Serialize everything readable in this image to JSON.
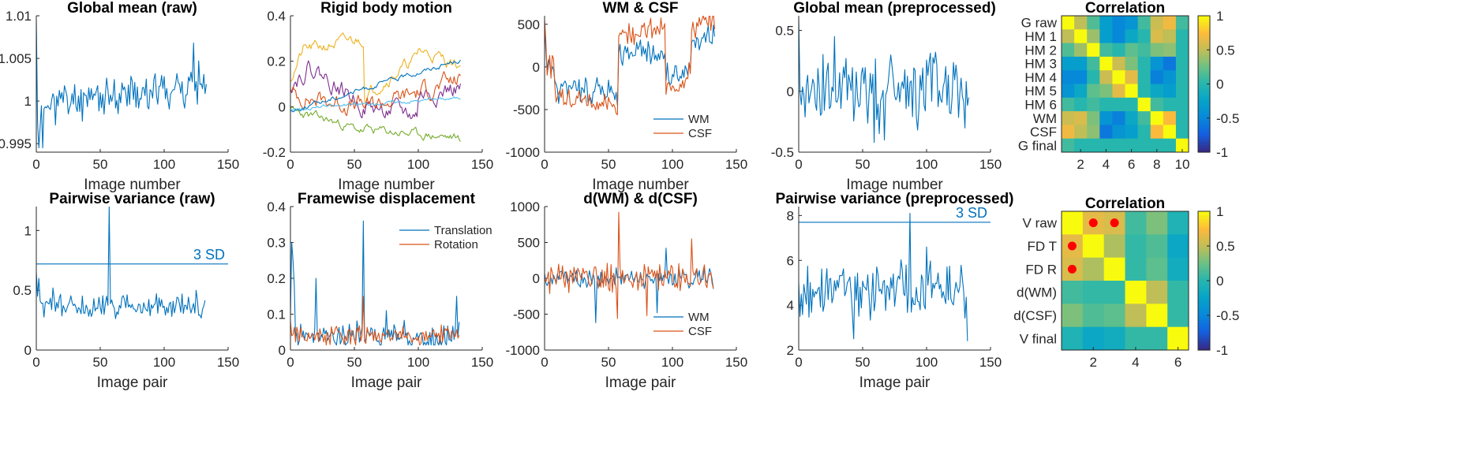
{
  "colors": {
    "c1": "#0072BD",
    "c2": "#D95319",
    "c3": "#EDB120",
    "c4": "#7E2F8E",
    "c5": "#77AC30",
    "c6": "#4DBEEE",
    "marker": "#FF0000"
  },
  "colorbar_ticks": [
    "1",
    "0.5",
    "0",
    "-0.5",
    "-1"
  ],
  "chart_data": [
    {
      "id": "p1",
      "type": "line",
      "title": "Global mean (raw)",
      "xlabel": "Image number",
      "xlim": [
        0,
        150
      ],
      "ylim": [
        0.994,
        1.01
      ],
      "xticks": [
        0,
        50,
        100,
        150
      ],
      "xtick_labels": [
        "0",
        "50",
        "100",
        "150"
      ],
      "yticks": [
        0.995,
        1,
        1.005,
        1.01
      ],
      "ytick_labels": [
        "0.995",
        "1",
        "1.005",
        "1.01"
      ],
      "series": [
        {
          "color": "c1",
          "gen": {
            "n": 134,
            "seed": 11,
            "base": 0.9995,
            "trend": 0.0025,
            "noise": 0.0018,
            "start": [
              1.0095,
              0.9975,
              0.9945,
              0.997
            ],
            "spikes": [
              [
                123,
                1.0068
              ],
              [
                5,
                0.9945
              ]
            ]
          }
        }
      ]
    },
    {
      "id": "p2",
      "type": "line",
      "title": "Rigid body motion",
      "xlabel": "Image number",
      "xlim": [
        0,
        150
      ],
      "ylim": [
        -0.2,
        0.4
      ],
      "xticks": [
        0,
        50,
        100,
        150
      ],
      "xtick_labels": [
        "0",
        "50",
        "100",
        "150"
      ],
      "yticks": [
        -0.2,
        0,
        0.2,
        0.4
      ],
      "ytick_labels": [
        "-0.2",
        "0",
        "0.2",
        "0.4"
      ],
      "series": [
        {
          "color": "c3",
          "gen": {
            "n": 134,
            "seed": 21,
            "walk": true,
            "segments": [
              [
                0,
                10,
                0.12,
                0.25
              ],
              [
                10,
                58,
                0.25,
                0.3
              ],
              [
                58,
                100,
                0.05,
                0.22
              ],
              [
                100,
                134,
                0.25,
                0.18
              ]
            ],
            "noise": 0.02
          }
        },
        {
          "color": "c4",
          "gen": {
            "n": 134,
            "seed": 22,
            "walk": true,
            "segments": [
              [
                0,
                15,
                0.1,
                0.18
              ],
              [
                15,
                58,
                0.18,
                0.0
              ],
              [
                58,
                100,
                0.0,
                -0.04
              ],
              [
                100,
                134,
                0.05,
                0.08
              ]
            ],
            "noise": 0.03
          }
        },
        {
          "color": "c5",
          "gen": {
            "n": 134,
            "seed": 23,
            "walk": true,
            "segments": [
              [
                0,
                30,
                -0.02,
                -0.06
              ],
              [
                30,
                58,
                -0.06,
                -0.11
              ],
              [
                58,
                134,
                -0.1,
                -0.14
              ]
            ],
            "noise": 0.015
          }
        },
        {
          "color": "c2",
          "gen": {
            "n": 134,
            "seed": 24,
            "walk": true,
            "segments": [
              [
                0,
                60,
                0.05,
                0.0
              ],
              [
                60,
                134,
                0.0,
                0.12
              ]
            ],
            "noise": 0.03
          }
        },
        {
          "color": "c1",
          "gen": {
            "n": 134,
            "seed": 25,
            "walk": true,
            "segments": [
              [
                0,
                134,
                -0.02,
                0.21
              ]
            ],
            "noise": 0.008
          }
        },
        {
          "color": "c6",
          "gen": {
            "n": 134,
            "seed": 26,
            "walk": true,
            "segments": [
              [
                0,
                134,
                -0.01,
                0.04
              ]
            ],
            "noise": 0.006
          }
        }
      ]
    },
    {
      "id": "p3",
      "type": "line",
      "title": "WM & CSF",
      "xlabel": "Image number",
      "xlim": [
        0,
        150
      ],
      "ylim": [
        -1000,
        600
      ],
      "xticks": [
        0,
        50,
        100,
        150
      ],
      "xtick_labels": [
        "0",
        "50",
        "100",
        "150"
      ],
      "yticks": [
        -1000,
        -500,
        0,
        500
      ],
      "ytick_labels": [
        "-1000",
        "-500",
        "0",
        "500"
      ],
      "legend": {
        "position": "bottom-right",
        "entries": [
          {
            "name": "WM",
            "color": "c1"
          },
          {
            "name": "CSF",
            "color": "c2"
          }
        ]
      },
      "series": [
        {
          "name": "WM",
          "color": "c1",
          "gen": {
            "n": 134,
            "seed": 31,
            "segments": [
              [
                0,
                8,
                0,
                0
              ],
              [
                8,
                58,
                -250,
                -300
              ],
              [
                58,
                95,
                180,
                150
              ],
              [
                95,
                115,
                -100,
                0
              ],
              [
                115,
                134,
                200,
                450
              ]
            ],
            "noise": 120,
            "start": [
              500,
              200
            ]
          }
        },
        {
          "name": "CSF",
          "color": "c2",
          "gen": {
            "n": 134,
            "seed": 32,
            "segments": [
              [
                0,
                8,
                0,
                0
              ],
              [
                8,
                58,
                -300,
                -480
              ],
              [
                58,
                95,
                400,
                450
              ],
              [
                95,
                115,
                -300,
                -50
              ],
              [
                115,
                134,
                450,
                560
              ]
            ],
            "noise": 100,
            "start": [
              550,
              300
            ]
          }
        }
      ]
    },
    {
      "id": "p4",
      "type": "line",
      "title": "Global mean (preprocessed)",
      "xlabel": "Image number",
      "xlim": [
        0,
        150
      ],
      "ylim": [
        -0.5,
        0.62
      ],
      "xticks": [
        0,
        50,
        100,
        150
      ],
      "xtick_labels": [
        "0",
        "50",
        "100",
        "150"
      ],
      "yticks": [
        -0.5,
        0,
        0.5
      ],
      "ytick_labels": [
        "-0.5",
        "0",
        "0.5"
      ],
      "series": [
        {
          "color": "c1",
          "gen": {
            "n": 134,
            "seed": 41,
            "base": 0.0,
            "noise": 0.25,
            "start": [
              0.6,
              0.0
            ],
            "spikes": [
              [
                67,
                -0.4
              ],
              [
                28,
                0.45
              ],
              [
                59,
                -0.42
              ]
            ]
          }
        }
      ]
    },
    {
      "id": "p5",
      "type": "heatmap",
      "title": "Correlation",
      "row_labels": [
        "G raw",
        "HM 1",
        "HM 2",
        "HM 3",
        "HM 4",
        "HM 5",
        "HM 6",
        "WM",
        "CSF",
        "G final"
      ],
      "xticks": [
        2,
        4,
        6,
        8,
        10
      ],
      "xtick_labels": [
        "2",
        "4",
        "6",
        "8",
        "10"
      ],
      "clim": [
        -1,
        1
      ],
      "matrix": [
        [
          1.0,
          0.5,
          0.15,
          -0.3,
          -0.5,
          -0.4,
          0.1,
          0.55,
          0.7,
          0.1
        ],
        [
          0.5,
          1.0,
          0.4,
          -0.3,
          -0.5,
          -0.2,
          0.0,
          0.6,
          0.5,
          0.0
        ],
        [
          0.15,
          0.4,
          1.0,
          0.1,
          0.0,
          0.2,
          0.1,
          0.3,
          0.35,
          0.0
        ],
        [
          -0.3,
          -0.3,
          0.1,
          1.0,
          0.55,
          0.3,
          0.0,
          -0.4,
          -0.6,
          0.0
        ],
        [
          -0.5,
          -0.5,
          0.0,
          0.55,
          1.0,
          0.65,
          0.0,
          -0.55,
          -0.4,
          0.0
        ],
        [
          -0.4,
          -0.2,
          0.2,
          0.3,
          0.65,
          1.0,
          0.0,
          -0.2,
          -0.3,
          0.0
        ],
        [
          0.1,
          0.0,
          0.1,
          0.0,
          0.0,
          0.0,
          1.0,
          0.1,
          0.0,
          0.0
        ],
        [
          0.55,
          0.6,
          0.3,
          -0.4,
          -0.55,
          -0.2,
          0.1,
          1.0,
          0.75,
          0.0
        ],
        [
          0.7,
          0.5,
          0.35,
          -0.6,
          -0.4,
          -0.3,
          0.0,
          0.75,
          1.0,
          0.0
        ],
        [
          0.1,
          0.0,
          0.0,
          0.0,
          0.0,
          0.0,
          0.0,
          0.0,
          0.0,
          1.0
        ]
      ]
    },
    {
      "id": "p6",
      "type": "line",
      "title": "Pairwise variance (raw)",
      "xlabel": "Image pair",
      "xlim": [
        0,
        150
      ],
      "ylim": [
        0,
        1.2
      ],
      "xticks": [
        0,
        50,
        100,
        150
      ],
      "xtick_labels": [
        "0",
        "50",
        "100",
        "150"
      ],
      "yticks": [
        0,
        0.5,
        1
      ],
      "ytick_labels": [
        "0",
        "0.5",
        "1"
      ],
      "hline": {
        "y": 0.72,
        "label": "3 SD"
      },
      "series": [
        {
          "color": "c1",
          "gen": {
            "n": 133,
            "seed": 61,
            "base": 0.36,
            "noise": 0.08,
            "positive": true,
            "start": [
              0.65,
              0.45,
              0.6
            ],
            "spikes": [
              [
                57,
                1.2
              ],
              [
                13,
                0.52
              ],
              [
                125,
                0.5
              ]
            ]
          }
        }
      ]
    },
    {
      "id": "p7",
      "type": "line",
      "title": "Framewise displacement",
      "xlabel": "Image pair",
      "xlim": [
        0,
        150
      ],
      "ylim": [
        0,
        0.4
      ],
      "xticks": [
        0,
        50,
        100,
        150
      ],
      "xtick_labels": [
        "0",
        "50",
        "100",
        "150"
      ],
      "yticks": [
        0,
        0.1,
        0.2,
        0.3,
        0.4
      ],
      "ytick_labels": [
        "0",
        "0.1",
        "0.2",
        "0.3",
        "0.4"
      ],
      "legend": {
        "position": "top-right",
        "entries": [
          {
            "name": "Translation",
            "color": "c1"
          },
          {
            "name": "Rotation",
            "color": "c2"
          }
        ]
      },
      "series": [
        {
          "name": "Translation",
          "color": "c1",
          "gen": {
            "n": 133,
            "seed": 71,
            "base": 0.04,
            "noise": 0.03,
            "positive": true,
            "start": [
              0.1,
              0.3,
              0.25,
              0.18
            ],
            "spikes": [
              [
                57,
                0.36
              ],
              [
                20,
                0.2
              ],
              [
                130,
                0.15
              ],
              [
                75,
                0.11
              ]
            ]
          }
        },
        {
          "name": "Rotation",
          "color": "c2",
          "gen": {
            "n": 133,
            "seed": 72,
            "base": 0.04,
            "noise": 0.02,
            "positive": true,
            "start": [
              0.08,
              0.04
            ],
            "spikes": [
              [
                57,
                0.15
              ],
              [
                118,
                0.07
              ]
            ]
          }
        }
      ]
    },
    {
      "id": "p8",
      "type": "line",
      "title": "d(WM) & d(CSF)",
      "xlabel": "Image pair",
      "xlim": [
        0,
        150
      ],
      "ylim": [
        -1000,
        1000
      ],
      "xticks": [
        0,
        50,
        100,
        150
      ],
      "xtick_labels": [
        "0",
        "50",
        "100",
        "150"
      ],
      "yticks": [
        -1000,
        -500,
        0,
        500,
        1000
      ],
      "ytick_labels": [
        "-1000",
        "-500",
        "0",
        "500",
        "1000"
      ],
      "legend": {
        "position": "bottom-right",
        "entries": [
          {
            "name": "WM",
            "color": "c1"
          },
          {
            "name": "CSF",
            "color": "c2"
          }
        ]
      },
      "series": [
        {
          "name": "WM",
          "color": "c1",
          "gen": {
            "n": 133,
            "seed": 81,
            "base": 0,
            "noise": 110,
            "spikes": [
              [
                40,
                -620
              ],
              [
                95,
                420
              ],
              [
                88,
                -480
              ]
            ]
          }
        },
        {
          "name": "CSF",
          "color": "c2",
          "gen": {
            "n": 133,
            "seed": 82,
            "base": 0,
            "noise": 150,
            "spikes": [
              [
                58,
                920
              ],
              [
                57,
                -560
              ],
              [
                115,
                550
              ],
              [
                80,
                -520
              ]
            ]
          }
        }
      ]
    },
    {
      "id": "p9",
      "type": "line",
      "title": "Pairwise variance (preprocessed)",
      "xlabel": "Image pair",
      "xlim": [
        0,
        150
      ],
      "ylim": [
        2,
        8.4
      ],
      "xticks": [
        0,
        50,
        100,
        150
      ],
      "xtick_labels": [
        "0",
        "50",
        "100",
        "150"
      ],
      "yticks": [
        2,
        4,
        6,
        8
      ],
      "ytick_labels": [
        "2",
        "4",
        "6",
        "8"
      ],
      "hline": {
        "y": 7.7,
        "label": "3 SD"
      },
      "series": [
        {
          "color": "c1",
          "gen": {
            "n": 133,
            "seed": 91,
            "base": 4.6,
            "noise": 1.0,
            "start": [
              5.0,
              3.5,
              4.5
            ],
            "spikes": [
              [
                87,
                8.1
              ],
              [
                43,
                2.5
              ],
              [
                132,
                2.4
              ],
              [
                100,
                6.6
              ]
            ]
          }
        }
      ]
    },
    {
      "id": "p10",
      "type": "heatmap",
      "title": "Correlation",
      "row_labels": [
        "V raw",
        "FD T",
        "FD R",
        "d(WM)",
        "d(CSF)",
        "V final"
      ],
      "xticks": [
        2,
        4,
        6
      ],
      "xtick_labels": [
        "2",
        "4",
        "6"
      ],
      "clim": [
        -1,
        1
      ],
      "matrix": [
        [
          1.0,
          0.65,
          0.6,
          0.1,
          0.3,
          -0.05
        ],
        [
          0.65,
          1.0,
          0.45,
          0.05,
          0.15,
          -0.2
        ],
        [
          0.6,
          0.45,
          1.0,
          0.05,
          0.2,
          -0.15
        ],
        [
          0.1,
          0.05,
          0.05,
          1.0,
          0.5,
          0.05
        ],
        [
          0.3,
          0.15,
          0.2,
          0.5,
          1.0,
          0.05
        ],
        [
          -0.05,
          -0.2,
          -0.15,
          0.05,
          0.05,
          1.0
        ]
      ],
      "markers": [
        [
          0,
          1
        ],
        [
          0,
          2
        ],
        [
          1,
          0
        ],
        [
          2,
          0
        ]
      ]
    }
  ]
}
